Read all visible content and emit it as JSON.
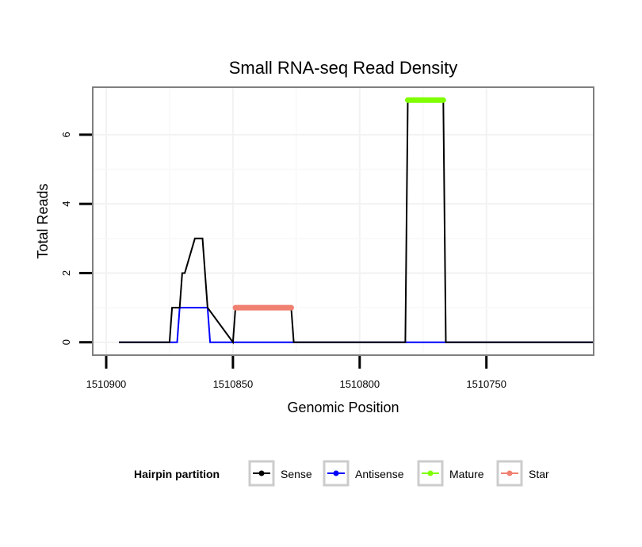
{
  "chart_data": {
    "type": "line",
    "title": "Small RNA-seq Read Density",
    "xlabel": "Genomic Position",
    "ylabel": "Total Reads",
    "x_reversed": true,
    "xlim": [
      1510905,
      1510708
    ],
    "ylim": [
      -0.35,
      7.35
    ],
    "x_ticks": [
      1510900,
      1510850,
      1510800,
      1510750
    ],
    "x_tick_labels": [
      "1510900",
      "1510850",
      "1510800",
      "1510750"
    ],
    "y_ticks": [
      0,
      2,
      4,
      6
    ],
    "y_tick_labels": [
      "0",
      "2",
      "4",
      "6"
    ],
    "grid": true,
    "legend": {
      "title": "Hairpin partition",
      "placement": "bottom",
      "entries": [
        "Sense",
        "Antisense",
        "Mature",
        "Star"
      ]
    },
    "series": [
      {
        "name": "Sense",
        "color": "#000000",
        "x": [
          1510895,
          1510875,
          1510874,
          1510872,
          1510871,
          1510870,
          1510869,
          1510865,
          1510863,
          1510862,
          1510860,
          1510850,
          1510849,
          1510827,
          1510826,
          1510782,
          1510781,
          1510767,
          1510766,
          1510708
        ],
        "y": [
          0,
          0,
          1,
          1,
          1,
          2,
          2,
          3,
          3,
          3,
          1,
          0,
          1,
          1,
          0,
          0,
          7,
          7,
          0,
          0
        ]
      },
      {
        "name": "Antisense",
        "color": "#0000ff",
        "x": [
          1510895,
          1510872,
          1510871,
          1510860,
          1510859,
          1510708
        ],
        "y": [
          0,
          0,
          1,
          1,
          0,
          0
        ]
      },
      {
        "name": "Mature",
        "color": "#7fff00",
        "x": [
          1510781,
          1510767
        ],
        "y": [
          7,
          7
        ]
      },
      {
        "name": "Star",
        "color": "#f08070",
        "x": [
          1510849,
          1510827
        ],
        "y": [
          1,
          1
        ]
      }
    ]
  }
}
